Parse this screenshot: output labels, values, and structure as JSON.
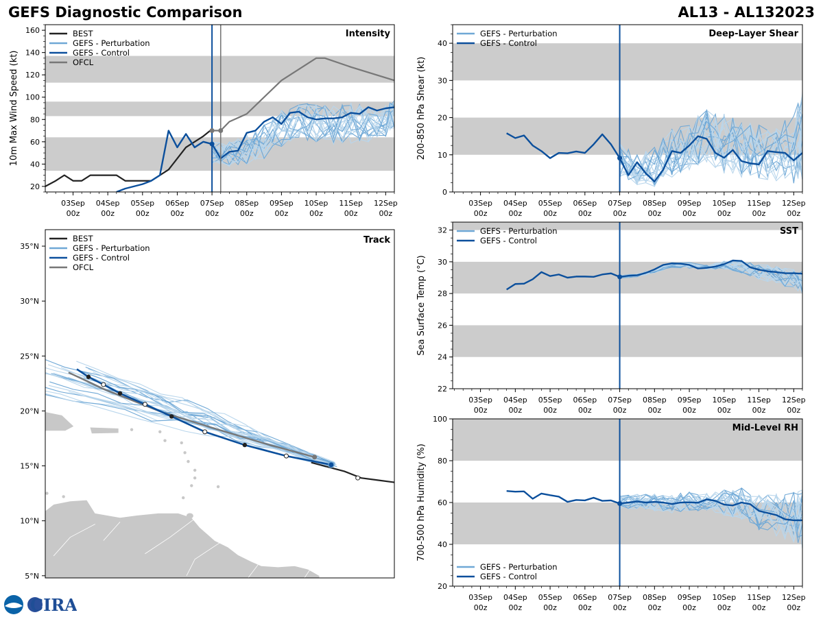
{
  "header": {
    "left_title": "GEFS Diagnostic Comparison",
    "right_title": "AL13 - AL132023"
  },
  "logo": {
    "text": "CIRA",
    "agency": "NOAA"
  },
  "colors": {
    "best": "#222222",
    "perturbation": "#6fa8d6",
    "perturbation_light": "#b9d6ec",
    "control": "#0b4f9c",
    "ofcl": "#777777",
    "band": "#cccccc",
    "land": "#c8c8c8"
  },
  "time_axis": {
    "days": [
      "03Sep",
      "04Sep",
      "05Sep",
      "06Sep",
      "07Sep",
      "08Sep",
      "09Sep",
      "10Sep",
      "11Sep",
      "12Sep"
    ],
    "hour_label": "00z"
  },
  "chart_data": [
    {
      "id": "intensity",
      "type": "line",
      "title": "Intensity",
      "ylabel": "10m Max Wind Speed (kt)",
      "xlim": [
        2.2,
        12.25
      ],
      "ylim": [
        15,
        165
      ],
      "yticks": [
        20,
        40,
        60,
        80,
        100,
        120,
        140,
        160
      ],
      "bands": [
        [
          34,
          64
        ],
        [
          83,
          96
        ],
        [
          113,
          137
        ]
      ],
      "vlines": [
        {
          "x": 7.0,
          "color": "control"
        },
        {
          "x": 7.25,
          "color": "ofcl"
        }
      ],
      "legend": [
        "BEST",
        "GEFS - Perturbation",
        "GEFS - Control",
        "OFCL"
      ],
      "series": [
        {
          "name": "BEST",
          "color": "best",
          "x": [
            2.2,
            2.5,
            2.75,
            3.0,
            3.25,
            3.5,
            3.75,
            4.0,
            4.25,
            4.5,
            4.75,
            5.0,
            5.25,
            5.5,
            5.75,
            6.0,
            6.25,
            6.5,
            6.75,
            6.95
          ],
          "y": [
            20,
            25,
            30,
            25,
            25,
            30,
            30,
            30,
            30,
            25,
            25,
            25,
            25,
            30,
            35,
            45,
            55,
            60,
            65,
            70
          ]
        },
        {
          "name": "GEFS - Control",
          "color": "control",
          "x": [
            4.25,
            4.5,
            4.75,
            5.0,
            5.25,
            5.5,
            5.75,
            6.0,
            6.25,
            6.5,
            6.75,
            7.0,
            7.25,
            7.5,
            7.75,
            8.0,
            8.25,
            8.5,
            8.75,
            9.0,
            9.25,
            9.5,
            9.75,
            10.0,
            10.25,
            10.5,
            10.75,
            11.0,
            11.25,
            11.5,
            11.75,
            12.0,
            12.25
          ],
          "y": [
            15,
            18,
            20,
            22,
            25,
            30,
            70,
            55,
            67,
            55,
            60,
            58,
            45,
            51,
            52,
            68,
            70,
            78,
            82,
            76,
            86,
            87,
            82,
            80,
            81,
            81,
            82,
            86,
            85,
            91,
            88,
            90,
            91
          ]
        },
        {
          "name": "OFCL",
          "color": "ofcl",
          "x": [
            7.0,
            7.25,
            7.5,
            8.0,
            9.0,
            10.0,
            10.25,
            11.0,
            12.25
          ],
          "y": [
            70,
            70,
            78,
            85,
            115,
            135,
            135,
            127,
            115
          ]
        },
        {
          "name": "OFCL points",
          "color": "ofcl",
          "x": [
            7.0,
            7.25
          ],
          "y": [
            70,
            70
          ]
        },
        {
          "name": "GEFS - Perturbation (spread)",
          "color": "perturbation",
          "x": [
            7.0,
            7.5,
            8.0,
            8.5,
            9.0,
            9.5,
            10.0,
            10.5,
            11.0,
            11.5,
            12.0,
            12.25
          ],
          "y_min": [
            40,
            38,
            40,
            45,
            55,
            62,
            60,
            58,
            56,
            60,
            65,
            70
          ],
          "y_max": [
            60,
            60,
            68,
            75,
            88,
            93,
            97,
            92,
            95,
            92,
            94,
            97
          ]
        }
      ]
    },
    {
      "id": "shear",
      "type": "line",
      "title": "Deep-Layer Shear",
      "ylabel": "200-850 hPa Shear (kt)",
      "xlim": [
        2.2,
        12.25
      ],
      "ylim": [
        0,
        45
      ],
      "yticks": [
        0,
        10,
        20,
        30,
        40
      ],
      "bands": [
        [
          10,
          20
        ],
        [
          30,
          40
        ]
      ],
      "vlines": [
        {
          "x": 7.0,
          "color": "control"
        }
      ],
      "legend": [
        "GEFS - Perturbation",
        "GEFS - Control"
      ],
      "series": [
        {
          "name": "GEFS - Control",
          "color": "control",
          "x": [
            3.75,
            4.0,
            4.25,
            4.5,
            4.75,
            5.0,
            5.25,
            5.5,
            5.75,
            6.0,
            6.25,
            6.5,
            6.75,
            7.0,
            7.25,
            7.5,
            7.75,
            8.0,
            8.25,
            8.5,
            8.75,
            9.0,
            9.25,
            9.5,
            9.75,
            10.0,
            10.25,
            10.5,
            10.75,
            11.0,
            11.25,
            11.5,
            11.75,
            12.0,
            12.25
          ],
          "y": [
            15.8,
            14.5,
            15.2,
            12.5,
            11.0,
            9.1,
            10.5,
            10.4,
            10.9,
            10.5,
            12.8,
            15.5,
            12.8,
            9.1,
            4.5,
            8.0,
            5.0,
            2.8,
            6.0,
            11.0,
            10.5,
            12.5,
            15.0,
            14.3,
            10.5,
            9.2,
            11.3,
            8.3,
            7.7,
            7.4,
            11.0,
            10.7,
            10.5,
            8.5,
            10.5
          ]
        },
        {
          "name": "GEFS - Perturbation (spread)",
          "color": "perturbation",
          "x": [
            7.0,
            7.5,
            8.0,
            8.5,
            9.0,
            9.5,
            10.0,
            10.5,
            11.0,
            11.5,
            12.0,
            12.25
          ],
          "y_min": [
            4,
            2,
            1.5,
            4,
            6,
            8,
            5,
            4,
            3,
            3,
            2,
            3
          ],
          "y_max": [
            13,
            10,
            12,
            17,
            19,
            22,
            21,
            19,
            18,
            17,
            22,
            27
          ]
        }
      ]
    },
    {
      "id": "sst",
      "type": "line",
      "title": "SST",
      "ylabel": "Sea Surface Temp (°C)",
      "xlim": [
        2.2,
        12.25
      ],
      "ylim": [
        22,
        32.5
      ],
      "yticks": [
        22,
        24,
        26,
        28,
        30,
        32
      ],
      "bands": [
        [
          24,
          26
        ],
        [
          28,
          30
        ],
        [
          32,
          34
        ]
      ],
      "vlines": [
        {
          "x": 7.0,
          "color": "control"
        }
      ],
      "legend": [
        "GEFS - Perturbation",
        "GEFS - Control"
      ],
      "series": [
        {
          "name": "GEFS - Control",
          "color": "control",
          "x": [
            3.75,
            4.0,
            4.25,
            4.5,
            4.75,
            5.0,
            5.25,
            5.5,
            5.75,
            6.0,
            6.25,
            6.5,
            6.75,
            7.0,
            7.25,
            7.5,
            7.75,
            8.0,
            8.25,
            8.5,
            8.75,
            9.0,
            9.25,
            9.5,
            9.75,
            10.0,
            10.25,
            10.5,
            10.75,
            11.0,
            11.25,
            11.5,
            11.75,
            12.0,
            12.25
          ],
          "y": [
            28.25,
            28.6,
            28.62,
            28.9,
            29.35,
            29.1,
            29.2,
            29.0,
            29.07,
            29.07,
            29.05,
            29.2,
            29.27,
            29.05,
            29.12,
            29.15,
            29.3,
            29.52,
            29.8,
            29.9,
            29.88,
            29.8,
            29.58,
            29.62,
            29.7,
            29.85,
            30.08,
            30.05,
            29.65,
            29.5,
            29.4,
            29.35,
            29.28,
            29.28,
            29.25
          ]
        },
        {
          "name": "GEFS - Perturbation (spread)",
          "color": "perturbation",
          "x": [
            7.0,
            7.5,
            8.0,
            8.5,
            9.0,
            9.5,
            10.0,
            10.5,
            11.0,
            11.5,
            12.0,
            12.25
          ],
          "y_min": [
            28.95,
            29.05,
            29.3,
            29.65,
            29.6,
            29.5,
            29.55,
            29.3,
            28.9,
            28.6,
            28.3,
            28.0
          ],
          "y_max": [
            29.15,
            29.25,
            29.55,
            29.95,
            29.95,
            29.8,
            30.05,
            30.1,
            29.9,
            29.7,
            29.5,
            29.5
          ]
        }
      ]
    },
    {
      "id": "rh",
      "type": "line",
      "title": "Mid-Level RH",
      "ylabel": "700-500 hPa Humidity (%)",
      "xlim": [
        2.2,
        12.25
      ],
      "ylim": [
        20,
        100
      ],
      "yticks": [
        20,
        40,
        60,
        80,
        100
      ],
      "bands": [
        [
          40,
          60
        ],
        [
          80,
          100
        ]
      ],
      "vlines": [
        {
          "x": 7.0,
          "color": "control"
        }
      ],
      "legend": [
        "GEFS - Perturbation",
        "GEFS - Control"
      ],
      "series": [
        {
          "name": "GEFS - Control",
          "color": "control",
          "x": [
            3.75,
            4.0,
            4.25,
            4.5,
            4.75,
            5.0,
            5.25,
            5.5,
            5.75,
            6.0,
            6.25,
            6.5,
            6.75,
            7.0,
            7.25,
            7.5,
            7.75,
            8.0,
            8.25,
            8.5,
            8.75,
            9.0,
            9.25,
            9.5,
            9.75,
            10.0,
            10.25,
            10.5,
            10.75,
            11.0,
            11.25,
            11.5,
            11.75,
            12.0,
            12.25
          ],
          "y": [
            65.5,
            65.2,
            65.3,
            61.8,
            64.3,
            63.5,
            62.8,
            60.3,
            61.2,
            61.0,
            62.3,
            60.8,
            61.0,
            59.5,
            60.0,
            60.5,
            60.0,
            60.3,
            60.0,
            59.3,
            60.0,
            60.1,
            59.9,
            61.5,
            60.8,
            59.0,
            58.6,
            60.0,
            59.2,
            56.0,
            55.0,
            54.0,
            52.0,
            51.5,
            51.5
          ]
        },
        {
          "name": "GEFS - Perturbation (spread)",
          "color": "perturbation",
          "x": [
            7.0,
            7.5,
            8.0,
            8.5,
            9.0,
            9.5,
            10.0,
            10.5,
            11.0,
            11.5,
            12.0,
            12.25
          ],
          "y_min": [
            57,
            57,
            56,
            55,
            56,
            56,
            54,
            52,
            47,
            44,
            41,
            38
          ],
          "y_max": [
            63,
            64,
            64,
            64,
            65,
            65,
            66,
            67,
            65,
            64,
            65,
            66
          ]
        }
      ]
    },
    {
      "id": "track",
      "type": "line",
      "title": "Track",
      "xlim": [
        -70,
        -49
      ],
      "ylim": [
        4.8,
        36.5
      ],
      "lat_ticks": [
        5,
        10,
        15,
        20,
        25,
        30,
        35
      ],
      "lat_labels": [
        "5°N",
        "10°N",
        "15°N",
        "20°N",
        "25°N",
        "30°N",
        "35°N"
      ],
      "legend": [
        "BEST",
        "GEFS - Perturbation",
        "GEFS - Control",
        "OFCL"
      ],
      "series": [
        {
          "name": "BEST",
          "color": "best",
          "lon": [
            -49.0,
            -50.0,
            -51.0,
            -52.0,
            -54.0
          ],
          "lat": [
            13.5,
            13.7,
            13.9,
            14.5,
            15.3
          ]
        },
        {
          "name": "GEFS - Control",
          "color": "control",
          "lon": [
            -52.8,
            -55.5,
            -58.0,
            -60.4,
            -62.4,
            -64.0,
            -65.5,
            -66.5,
            -67.4,
            -68.1
          ],
          "lat": [
            15.1,
            15.9,
            16.9,
            18.1,
            19.5,
            20.6,
            21.6,
            22.4,
            23.1,
            23.8
          ],
          "open_points": [
            0,
            1,
            3,
            5,
            7
          ],
          "filled_points": [
            2,
            4,
            6,
            8
          ]
        },
        {
          "name": "OFCL",
          "color": "ofcl",
          "lon": [
            -53.8,
            -56.5,
            -59.6,
            -63.0,
            -66.5,
            -68.6
          ],
          "lat": [
            15.8,
            16.9,
            18.3,
            19.9,
            22.0,
            23.5
          ],
          "point": 0
        },
        {
          "name": "BEST open markers",
          "color": "best",
          "lon": [
            -51.2
          ],
          "lat": [
            13.9
          ]
        }
      ]
    }
  ]
}
